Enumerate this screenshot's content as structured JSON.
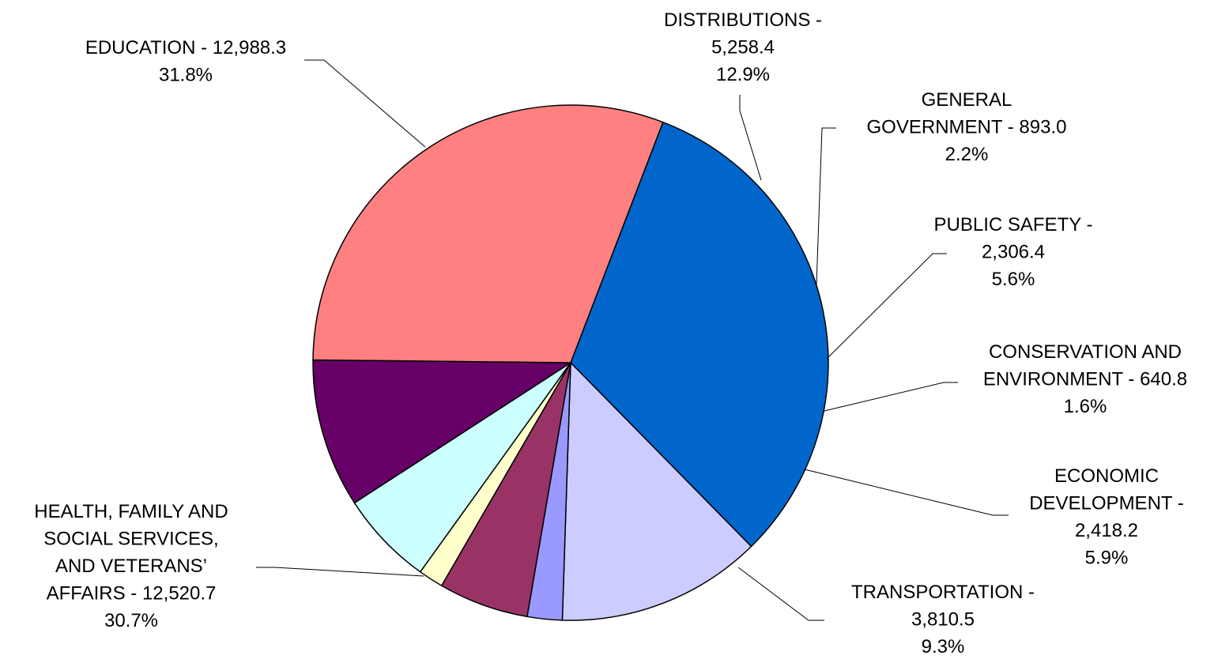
{
  "chart_data": {
    "type": "pie",
    "title": "",
    "start_angle_deg": 21,
    "direction": "clockwise",
    "slices": [
      {
        "name": "EDUCATION",
        "value": 12988.3,
        "percent": "31.8%",
        "color": "#0066CC",
        "label_lines": [
          "EDUCATION - 12,988.3",
          "31.8%"
        ]
      },
      {
        "name": "DISTRIBUTIONS",
        "value": 5258.4,
        "percent": "12.9%",
        "color": "#CCCCFF",
        "label_lines": [
          "DISTRIBUTIONS -",
          "5,258.4",
          "12.9%"
        ]
      },
      {
        "name": "GENERAL GOVERNMENT",
        "value": 893.0,
        "percent": "2.2%",
        "color": "#9999FF",
        "label_lines": [
          "GENERAL",
          "GOVERNMENT - 893.0",
          "2.2%"
        ]
      },
      {
        "name": "PUBLIC SAFETY",
        "value": 2306.4,
        "percent": "5.6%",
        "color": "#993366",
        "label_lines": [
          "PUBLIC SAFETY -",
          "2,306.4",
          "5.6%"
        ]
      },
      {
        "name": "CONSERVATION AND ENVIRONMENT",
        "value": 640.8,
        "percent": "1.6%",
        "color": "#FFFFCC",
        "label_lines": [
          "CONSERVATION AND",
          "ENVIRONMENT - 640.8",
          "1.6%"
        ]
      },
      {
        "name": "ECONOMIC DEVELOPMENT",
        "value": 2418.2,
        "percent": "5.9%",
        "color": "#CCFFFF",
        "label_lines": [
          "ECONOMIC",
          "DEVELOPMENT -",
          "2,418.2",
          "5.9%"
        ]
      },
      {
        "name": "TRANSPORTATION",
        "value": 3810.5,
        "percent": "9.3%",
        "color": "#660066",
        "label_lines": [
          "TRANSPORTATION -",
          "3,810.5",
          "9.3%"
        ]
      },
      {
        "name": "HEALTH, FAMILY AND SOCIAL SERVICES, AND VETERANS' AFFAIRS",
        "value": 12520.7,
        "percent": "30.7%",
        "color": "#FF8080",
        "label_lines": [
          "HEALTH, FAMILY AND",
          "SOCIAL SERVICES,",
          "AND VETERANS’",
          "AFFAIRS - 12,520.7",
          "30.7%"
        ]
      }
    ]
  }
}
